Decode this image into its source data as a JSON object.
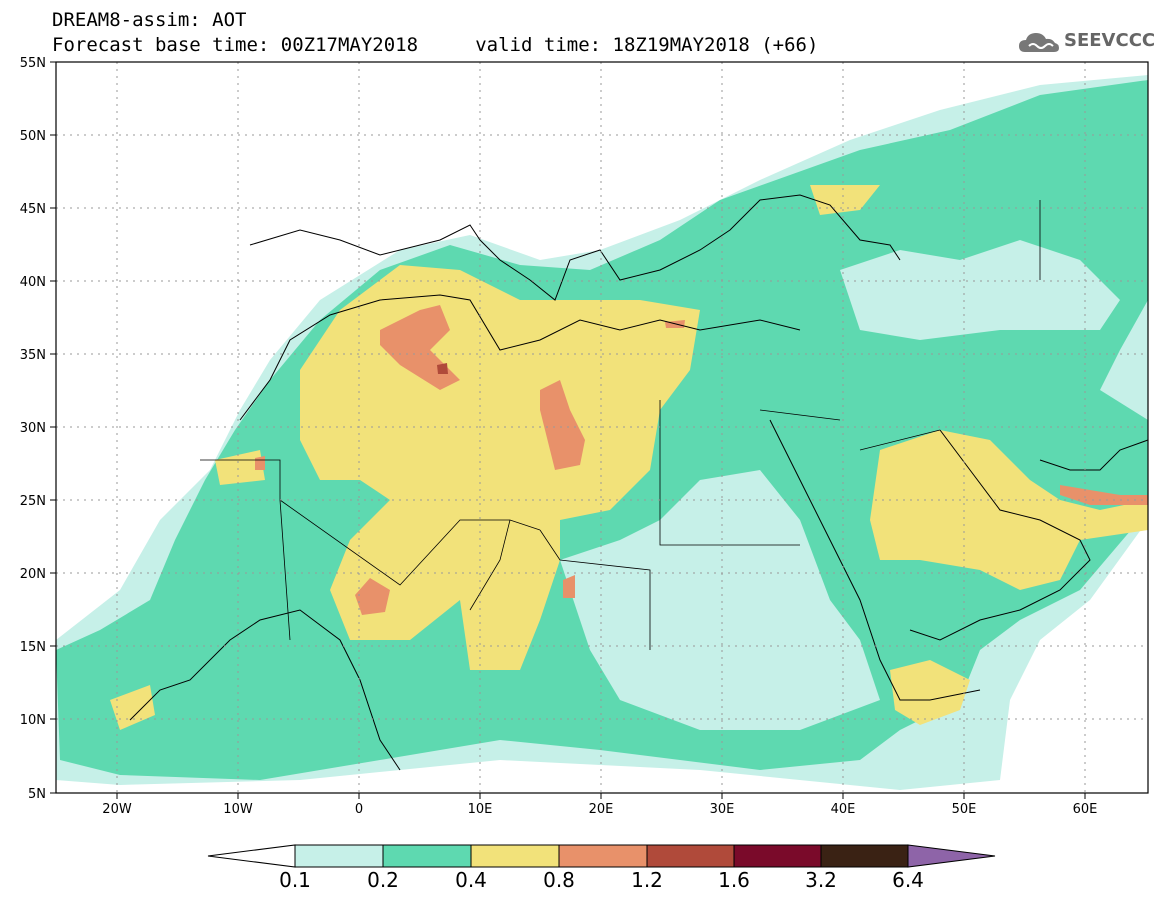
{
  "header": {
    "title_line1": "DREAM8-assim: AOT",
    "title_line2": "Forecast base time: 00Z17MAY2018     valid time: 18Z19MAY2018 (+66)"
  },
  "logo": {
    "text": "SEEVCCC",
    "icon": "cloud-logo-icon"
  },
  "map": {
    "variable": "AOT",
    "lon_range": [
      -25,
      65
    ],
    "lat_range": [
      5,
      55
    ],
    "lat_ticks": [
      "55N",
      "50N",
      "45N",
      "40N",
      "35N",
      "30N",
      "25N",
      "20N",
      "15N",
      "10N",
      "5N"
    ],
    "lon_ticks": [
      "20W",
      "10W",
      "0",
      "10E",
      "20E",
      "30E",
      "40E",
      "50E",
      "60E"
    ],
    "grid": true
  },
  "colorbar": {
    "labels": [
      "0.1",
      "0.2",
      "0.4",
      "0.8",
      "1.2",
      "1.6",
      "3.2",
      "6.4"
    ],
    "colors": [
      "#ffffff",
      "#c6f0e8",
      "#5ed9b0",
      "#f2e27a",
      "#e8916a",
      "#b04a3a",
      "#7a0a2a",
      "#3a2214",
      "#8e64a8"
    ]
  }
}
